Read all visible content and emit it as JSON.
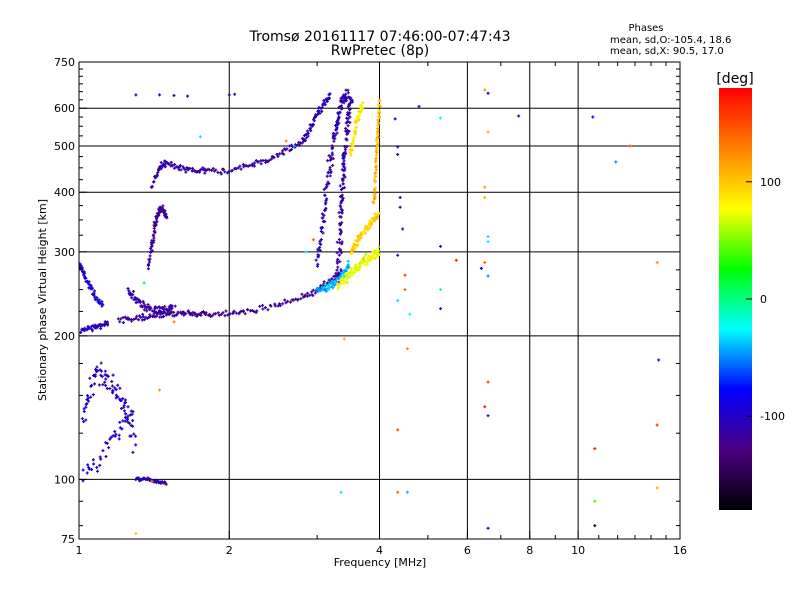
{
  "chart_data": {
    "type": "scatter",
    "title": "Tromsø 20161117 07:46:00-07:47:43",
    "subtitle": "RwPretec (8p)",
    "xlabel": "Frequency [MHz]",
    "ylabel": "Stationary phase Virtual Height [km]",
    "x_scale": "log",
    "y_scale": "log",
    "xlim": [
      1,
      16
    ],
    "ylim": [
      75,
      750
    ],
    "x_ticks": [
      1,
      2,
      4,
      6,
      8,
      10,
      16
    ],
    "x_tick_labels": [
      "1",
      "2",
      "4",
      "6",
      "8",
      "10",
      "16"
    ],
    "y_ticks": [
      75,
      100,
      200,
      300,
      400,
      500,
      600,
      750
    ],
    "y_tick_labels": [
      "75",
      "100",
      "200",
      "300",
      "400",
      "500",
      "600",
      "750"
    ],
    "grid": true,
    "legend": {
      "title": "Phases",
      "lines": [
        "mean, sd,O:-105.4, 18.6",
        "mean, sd,X:  90.5, 17.0"
      ],
      "placement": "top-right"
    },
    "colorbar": {
      "label": "[deg]",
      "range": [
        -180,
        180
      ],
      "ticks": [
        100,
        0,
        -100
      ],
      "tick_labels": [
        "100",
        "0",
        "-100"
      ],
      "colormap": [
        "#000000",
        "#4b0082",
        "#0000ff",
        "#00ffff",
        "#00ff00",
        "#ffff00",
        "#ff8000",
        "#ff0000"
      ],
      "placement": "right"
    },
    "series": [
      {
        "name": "O",
        "traces": [
          {
            "x": [
              1.0,
              1.02,
              1.05,
              1.08,
              1.12
            ],
            "y": [
              285,
              270,
              255,
              240,
              232
            ],
            "phase": -95,
            "spread": 0.02
          },
          {
            "x": [
              1.0,
              1.05,
              1.1,
              1.15
            ],
            "y": [
              205,
              207,
              210,
              212
            ],
            "phase": -105,
            "spread": 0.015
          },
          {
            "x": [
              1.0,
              1.05,
              1.1,
              1.15,
              1.2,
              1.25,
              1.3
            ],
            "y": [
              130,
              150,
              170,
              160,
              150,
              140,
              115
            ],
            "phase": -105,
            "spread": 0.06
          },
          {
            "x": [
              1.0,
              1.1,
              1.2,
              1.3
            ],
            "y": [
              100,
              110,
              125,
              140
            ],
            "phase": -95,
            "spread": 0.05
          },
          {
            "x": [
              1.3,
              1.36,
              1.42,
              1.5
            ],
            "y": [
              100,
              100,
              99,
              98
            ],
            "phase": -110,
            "spread": 0.01
          },
          {
            "x": [
              1.2,
              1.3,
              1.4,
              1.5,
              1.6,
              1.7,
              1.8,
              2.0,
              2.2,
              2.5,
              2.8,
              3.0,
              3.2,
              3.4
            ],
            "y": [
              215,
              217,
              220,
              222,
              223,
              223,
              222,
              222,
              225,
              232,
              240,
              250,
              262,
              275
            ],
            "phase": -120,
            "spread": 0.018
          },
          {
            "x": [
              1.25,
              1.3,
              1.35,
              1.4,
              1.45,
              1.5,
              1.55
            ],
            "y": [
              250,
              240,
              232,
              228,
              226,
              226,
              228
            ],
            "phase": -115,
            "spread": 0.03
          },
          {
            "x": [
              1.38,
              1.4,
              1.42,
              1.44,
              1.46,
              1.48,
              1.5
            ],
            "y": [
              280,
              310,
              340,
              360,
              370,
              365,
              355
            ],
            "phase": -118,
            "spread": 0.02
          },
          {
            "x": [
              1.4,
              1.45,
              1.5,
              1.6,
              1.7,
              1.8,
              2.0,
              2.2,
              2.4,
              2.6,
              2.8
            ],
            "y": [
              410,
              450,
              460,
              450,
              445,
              442,
              445,
              455,
              470,
              490,
              510
            ],
            "phase": -115,
            "spread": 0.018
          },
          {
            "x": [
              2.8,
              2.9,
              3.0,
              3.1,
              3.2
            ],
            "y": [
              510,
              540,
              580,
              615,
              640
            ],
            "phase": -105,
            "spread": 0.02
          },
          {
            "x": [
              3.0,
              3.05,
              3.1,
              3.15,
              3.2,
              3.25,
              3.3,
              3.35,
              3.4,
              3.45
            ],
            "y": [
              280,
              320,
              370,
              420,
              470,
              520,
              560,
              600,
              630,
              650
            ],
            "phase": -110,
            "spread": 0.035
          },
          {
            "x": [
              3.3,
              3.32,
              3.34,
              3.36,
              3.38,
              3.4,
              3.42,
              3.45,
              3.48,
              3.5
            ],
            "y": [
              260,
              300,
              340,
              380,
              420,
              460,
              500,
              550,
              600,
              640
            ],
            "phase": -112,
            "spread": 0.035
          },
          {
            "x": [
              3.0,
              3.1,
              3.2,
              3.3,
              3.4,
              3.5
            ],
            "y": [
              248,
              252,
              255,
              260,
              270,
              285
            ],
            "phase": -40,
            "spread": 0.025
          }
        ]
      },
      {
        "name": "X",
        "traces": [
          {
            "x": [
              3.3,
              3.4,
              3.5,
              3.6,
              3.7,
              3.8,
              3.9,
              4.0
            ],
            "y": [
              255,
              262,
              270,
              278,
              285,
              290,
              295,
              300
            ],
            "phase": 75,
            "spread": 0.03
          },
          {
            "x": [
              3.5,
              3.6,
              3.7,
              3.8,
              3.9,
              4.0
            ],
            "y": [
              300,
              315,
              330,
              340,
              350,
              360
            ],
            "phase": 95,
            "spread": 0.025
          },
          {
            "x": [
              3.9,
              3.92,
              3.94,
              3.96,
              3.98,
              4.0
            ],
            "y": [
              380,
              420,
              470,
              520,
              570,
              630
            ],
            "phase": 105,
            "spread": 0.015
          },
          {
            "x": [
              3.5,
              3.55,
              3.6,
              3.65,
              3.7
            ],
            "y": [
              480,
              520,
              560,
              590,
              610
            ],
            "phase": 88,
            "spread": 0.02
          }
        ]
      }
    ],
    "scattered_points": [
      {
        "x": 1.3,
        "y": 640,
        "phase": -115
      },
      {
        "x": 1.45,
        "y": 640,
        "phase": -115
      },
      {
        "x": 1.55,
        "y": 638,
        "phase": -115
      },
      {
        "x": 1.65,
        "y": 636,
        "phase": -115
      },
      {
        "x": 2.0,
        "y": 640,
        "phase": -115
      },
      {
        "x": 2.05,
        "y": 642,
        "phase": -110
      },
      {
        "x": 1.75,
        "y": 523,
        "phase": -30
      },
      {
        "x": 4.35,
        "y": 498,
        "phase": -100
      },
      {
        "x": 4.35,
        "y": 480,
        "phase": -100
      },
      {
        "x": 4.3,
        "y": 570,
        "phase": -90
      },
      {
        "x": 4.8,
        "y": 605,
        "phase": -110
      },
      {
        "x": 5.3,
        "y": 572,
        "phase": -20
      },
      {
        "x": 4.4,
        "y": 390,
        "phase": -110
      },
      {
        "x": 4.4,
        "y": 372,
        "phase": -110
      },
      {
        "x": 4.45,
        "y": 335,
        "phase": -110
      },
      {
        "x": 4.35,
        "y": 295,
        "phase": -110
      },
      {
        "x": 5.3,
        "y": 308,
        "phase": -110
      },
      {
        "x": 4.5,
        "y": 268,
        "phase": 160
      },
      {
        "x": 5.7,
        "y": 288,
        "phase": 170
      },
      {
        "x": 5.3,
        "y": 250,
        "phase": -10
      },
      {
        "x": 4.5,
        "y": 250,
        "phase": 140
      },
      {
        "x": 4.35,
        "y": 237,
        "phase": -30
      },
      {
        "x": 4.6,
        "y": 222,
        "phase": -20
      },
      {
        "x": 5.3,
        "y": 228,
        "phase": -110
      },
      {
        "x": 4.55,
        "y": 188,
        "phase": 120
      },
      {
        "x": 4.35,
        "y": 127,
        "phase": 150
      },
      {
        "x": 4.35,
        "y": 94,
        "phase": 140
      },
      {
        "x": 4.55,
        "y": 94,
        "phase": -40
      },
      {
        "x": 3.35,
        "y": 94,
        "phase": -30
      },
      {
        "x": 3.4,
        "y": 197,
        "phase": 110
      },
      {
        "x": 6.5,
        "y": 655,
        "phase": 120
      },
      {
        "x": 6.6,
        "y": 645,
        "phase": -80
      },
      {
        "x": 6.6,
        "y": 535,
        "phase": 110
      },
      {
        "x": 6.5,
        "y": 410,
        "phase": 120
      },
      {
        "x": 6.5,
        "y": 390,
        "phase": 110
      },
      {
        "x": 6.6,
        "y": 323,
        "phase": -30
      },
      {
        "x": 6.6,
        "y": 315,
        "phase": -30
      },
      {
        "x": 6.5,
        "y": 285,
        "phase": 140
      },
      {
        "x": 6.4,
        "y": 277,
        "phase": -80
      },
      {
        "x": 6.6,
        "y": 267,
        "phase": -50
      },
      {
        "x": 6.6,
        "y": 160,
        "phase": 160
      },
      {
        "x": 6.5,
        "y": 142,
        "phase": 170
      },
      {
        "x": 6.6,
        "y": 136,
        "phase": -110
      },
      {
        "x": 6.6,
        "y": 79,
        "phase": -100
      },
      {
        "x": 7.6,
        "y": 578,
        "phase": -120
      },
      {
        "x": 10.7,
        "y": 575,
        "phase": -80
      },
      {
        "x": 11.9,
        "y": 463,
        "phase": -50
      },
      {
        "x": 12.7,
        "y": 500,
        "phase": 150
      },
      {
        "x": 14.4,
        "y": 285,
        "phase": 120
      },
      {
        "x": 14.5,
        "y": 178,
        "phase": -110
      },
      {
        "x": 14.4,
        "y": 130,
        "phase": 160
      },
      {
        "x": 10.8,
        "y": 116,
        "phase": 170
      },
      {
        "x": 14.4,
        "y": 96,
        "phase": 110
      },
      {
        "x": 10.8,
        "y": 90,
        "phase": 40
      },
      {
        "x": 10.8,
        "y": 80,
        "phase": -150
      },
      {
        "x": 1.55,
        "y": 214,
        "phase": 130
      },
      {
        "x": 1.35,
        "y": 258,
        "phase": 20
      },
      {
        "x": 1.3,
        "y": 77,
        "phase": 100
      },
      {
        "x": 1.4,
        "y": 99,
        "phase": 130
      },
      {
        "x": 1.45,
        "y": 154,
        "phase": 120
      },
      {
        "x": 2.7,
        "y": 500,
        "phase": -40
      },
      {
        "x": 2.6,
        "y": 512,
        "phase": 130
      },
      {
        "x": 2.95,
        "y": 318,
        "phase": 140
      },
      {
        "x": 2.85,
        "y": 300,
        "phase": -30
      }
    ]
  }
}
